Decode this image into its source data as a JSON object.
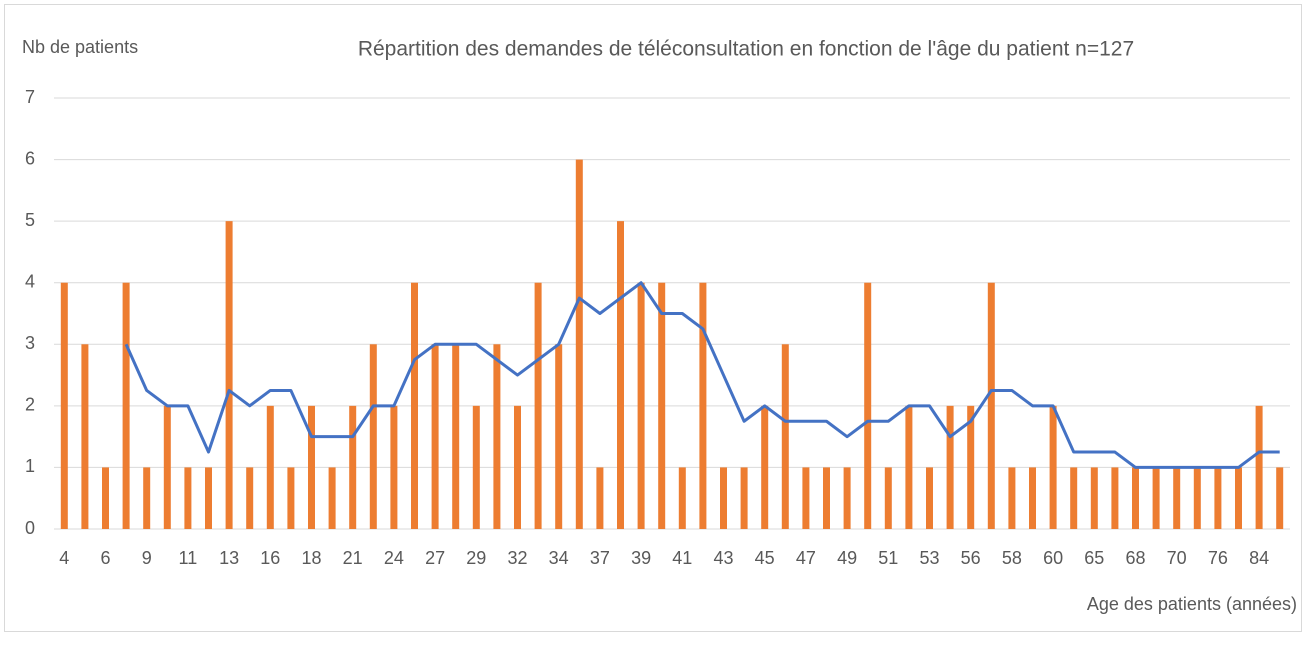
{
  "chart_data": {
    "type": "bar",
    "title": "Répartition des demandes de téléconsultation en fonction de l'âge du patient n=127",
    "y_label": "Nb de patients",
    "x_label": "Age des patients (années)",
    "categories": [
      "4",
      null,
      "6",
      null,
      "9",
      null,
      "11",
      null,
      "13",
      null,
      "16",
      null,
      "18",
      null,
      "21",
      null,
      "24",
      null,
      "27",
      null,
      "29",
      null,
      "32",
      null,
      "34",
      null,
      "37",
      null,
      "39",
      null,
      "41",
      null,
      "43",
      null,
      "45",
      null,
      "47",
      null,
      "49",
      null,
      "51",
      null,
      "53",
      null,
      "56",
      null,
      "58",
      null,
      "60",
      null,
      "65",
      null,
      "68",
      null,
      "70",
      null,
      "76",
      null,
      "84",
      null
    ],
    "series": [
      {
        "type": "bar",
        "color": "#ed7d31",
        "values": [
          4,
          3,
          1,
          4,
          1,
          2,
          1,
          1,
          5,
          1,
          2,
          1,
          2,
          1,
          2,
          3,
          2,
          4,
          3,
          3,
          2,
          3,
          2,
          4,
          3,
          6,
          1,
          5,
          4,
          4,
          1,
          4,
          1,
          1,
          2,
          3,
          1,
          1,
          1,
          4,
          1,
          2,
          1,
          2,
          2,
          4,
          1,
          1,
          2,
          1,
          1,
          1,
          1,
          1,
          1,
          1,
          1,
          1,
          2,
          1
        ]
      },
      {
        "type": "line",
        "color": "#4472c4",
        "values": [
          null,
          null,
          null,
          3,
          2.25,
          2,
          2,
          1.25,
          2.25,
          2,
          2.25,
          2.25,
          1.5,
          1.5,
          1.5,
          2,
          2,
          2.75,
          3,
          3,
          3,
          2.75,
          2.5,
          2.75,
          3,
          3.75,
          3.5,
          3.75,
          4,
          3.5,
          3.5,
          3.25,
          2.5,
          1.75,
          2,
          1.75,
          1.75,
          1.75,
          1.5,
          1.75,
          1.75,
          2,
          2,
          1.5,
          1.75,
          2.25,
          2.25,
          2,
          2,
          1.25,
          1.25,
          1.25,
          1,
          1,
          1,
          1,
          1,
          1,
          1.25,
          1.25
        ]
      }
    ],
    "ylim": [
      0,
      7
    ],
    "yticks": [
      0,
      1,
      2,
      3,
      4,
      5,
      6,
      7
    ],
    "grid": true
  }
}
